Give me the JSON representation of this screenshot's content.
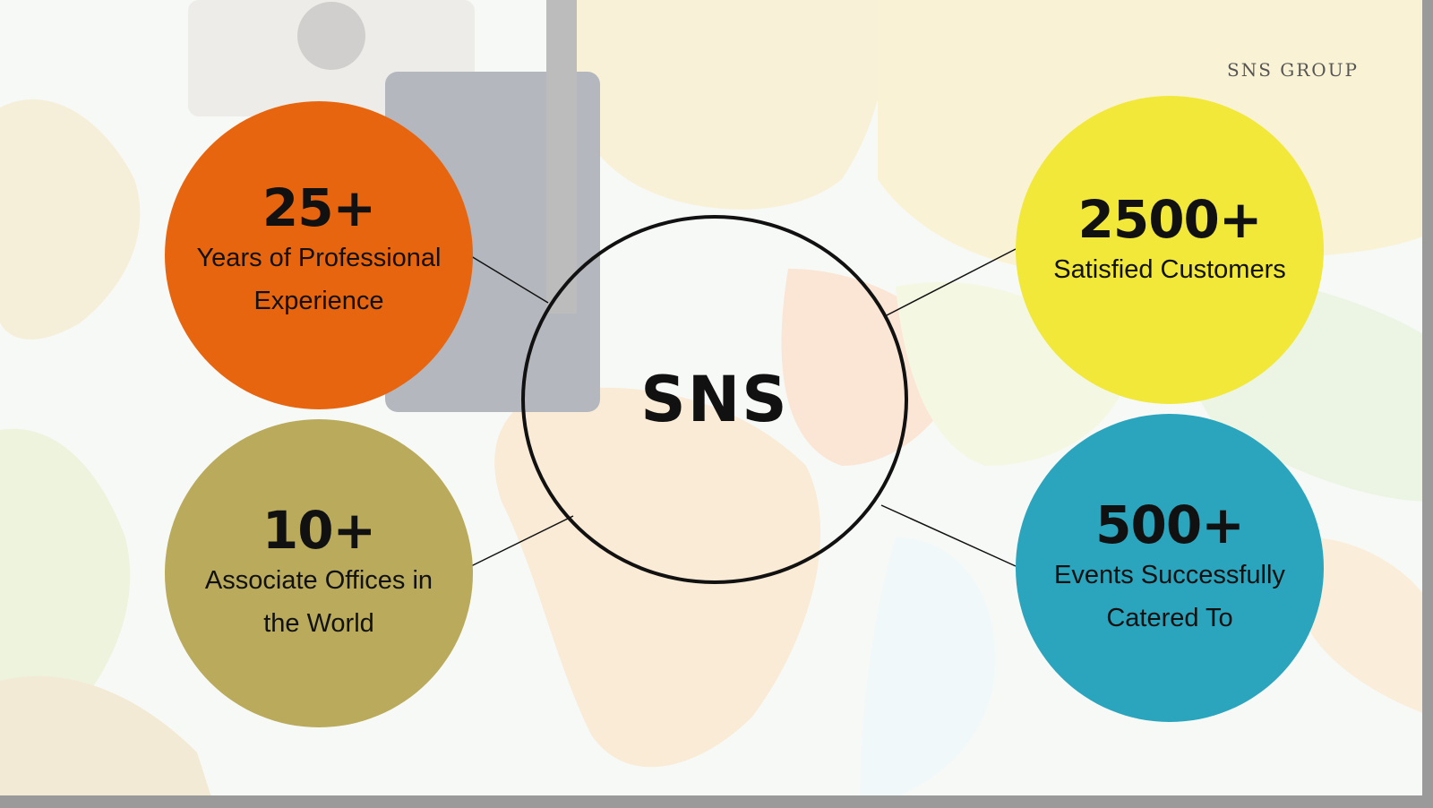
{
  "brand": "SNS GROUP",
  "center": {
    "label": "SNS"
  },
  "stats": [
    {
      "number": "25+",
      "line1": "Years of Professional",
      "line2": "Experience",
      "color": "#e8650f"
    },
    {
      "number": "10+",
      "line1": "Associate Offices in",
      "line2": "the World",
      "color": "#b9aa5c"
    },
    {
      "number": "2500+",
      "line1": "Satisfied Customers",
      "line2": "",
      "color": "#f1e83a"
    },
    {
      "number": "500+",
      "line1": "Events Successfully",
      "line2": "Catered To",
      "color": "#2aa5bd"
    }
  ]
}
